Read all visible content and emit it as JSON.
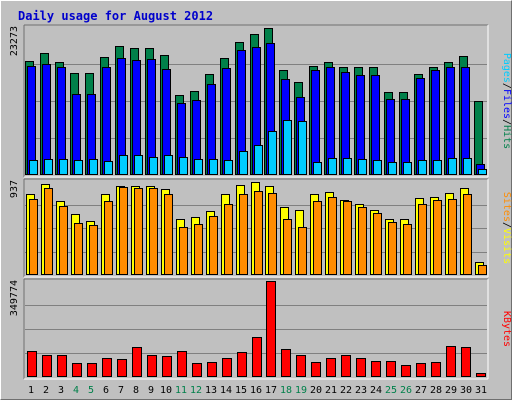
{
  "chart_data": {
    "type": "bar",
    "title": "Daily usage for August 2012",
    "days": [
      "1",
      "2",
      "3",
      "4",
      "5",
      "6",
      "7",
      "8",
      "9",
      "10",
      "11",
      "12",
      "13",
      "14",
      "15",
      "16",
      "17",
      "18",
      "19",
      "20",
      "21",
      "22",
      "23",
      "24",
      "25",
      "26",
      "27",
      "28",
      "29",
      "30",
      "31"
    ],
    "weekend_days": [
      "4",
      "5",
      "11",
      "12",
      "18",
      "19",
      "25",
      "26"
    ],
    "colors": {
      "title": "#0000cc",
      "hits": "#00804a",
      "files": "#0000ff",
      "pages": "#00ccff",
      "visits": "#ffff00",
      "sites": "#ff8c00",
      "kbytes": "#ff0000",
      "weekend": "#00804a",
      "weekday": "#000000",
      "slash": "#000000"
    },
    "panels": [
      {
        "id": "traffic",
        "max_label": "23273",
        "max": 23273,
        "legend": [
          "Pages",
          "/",
          "Files",
          "/",
          "Hits"
        ],
        "series": [
          {
            "name": "Hits",
            "values": [
              17990,
              19150,
              17790,
              16030,
              16060,
              18580,
              20220,
              19940,
              19940,
              18940,
              12560,
              13150,
              15820,
              18430,
              20850,
              22210,
              23150,
              16550,
              14590,
              17170,
              17790,
              17000,
              17000,
              17000,
              13000,
              13000,
              15820,
              17000,
              17790,
              18790,
              11650
            ]
          },
          {
            "name": "Files",
            "values": [
              17090,
              17500,
              16960,
              12790,
              12790,
              16980,
              18360,
              18040,
              18230,
              16740,
              11380,
              11780,
              14380,
              16840,
              19730,
              20130,
              20740,
              15160,
              12190,
              16580,
              16960,
              16210,
              15800,
              15800,
              11950,
              11950,
              15290,
              16540,
              17000,
              16960,
              1700
            ]
          },
          {
            "name": "Pages",
            "values": [
              2300,
              2500,
              2500,
              2300,
              2500,
              2200,
              3100,
              3100,
              2900,
              3200,
              2800,
              2450,
              2550,
              2400,
              3720,
              4700,
              6880,
              8630,
              8450,
              2000,
              2650,
              2650,
              2500,
              2300,
              2000,
              2050,
              2400,
              2350,
              2600,
              2700,
              1000
            ]
          }
        ]
      },
      {
        "id": "visits-sites",
        "max_label": "937",
        "max": 937,
        "legend": [
          "Sites",
          "/",
          "Visits"
        ],
        "series": [
          {
            "name": "Visits",
            "values": [
              803,
              903,
              740,
              607,
              539,
              805,
              891,
              891,
              891,
              854,
              563,
              578,
              641,
              811,
              896,
              925,
              890,
              676,
              645,
              803,
              824,
              746,
              710,
              651,
              563,
              557,
              771,
              780,
              818,
              867,
              125
            ]
          },
          {
            "name": "Sites",
            "values": [
              759,
              865,
              692,
              521,
              502,
              739,
              880,
              872,
              872,
              810,
              480,
              510,
              584,
              712,
              809,
              837,
              820,
              560,
              479,
              740,
              776,
              736,
              676,
              620,
              532,
              512,
              709,
              747,
              755,
              805,
              100
            ]
          }
        ]
      },
      {
        "id": "kbytes",
        "max_label": "349774",
        "max": 349774,
        "legend": [
          "KBytes"
        ],
        "series": [
          {
            "name": "KBytes",
            "values": [
              94800,
              80500,
              80500,
              50500,
              50600,
              68900,
              67400,
              110000,
              81300,
              75000,
              94600,
              50000,
              54900,
              68800,
              91500,
              145000,
              349774,
              102900,
              79800,
              54500,
              67500,
              80600,
              67500,
              58100,
              58600,
              45000,
              51500,
              53500,
              113000,
              110000,
              15300
            ]
          }
        ]
      }
    ]
  }
}
